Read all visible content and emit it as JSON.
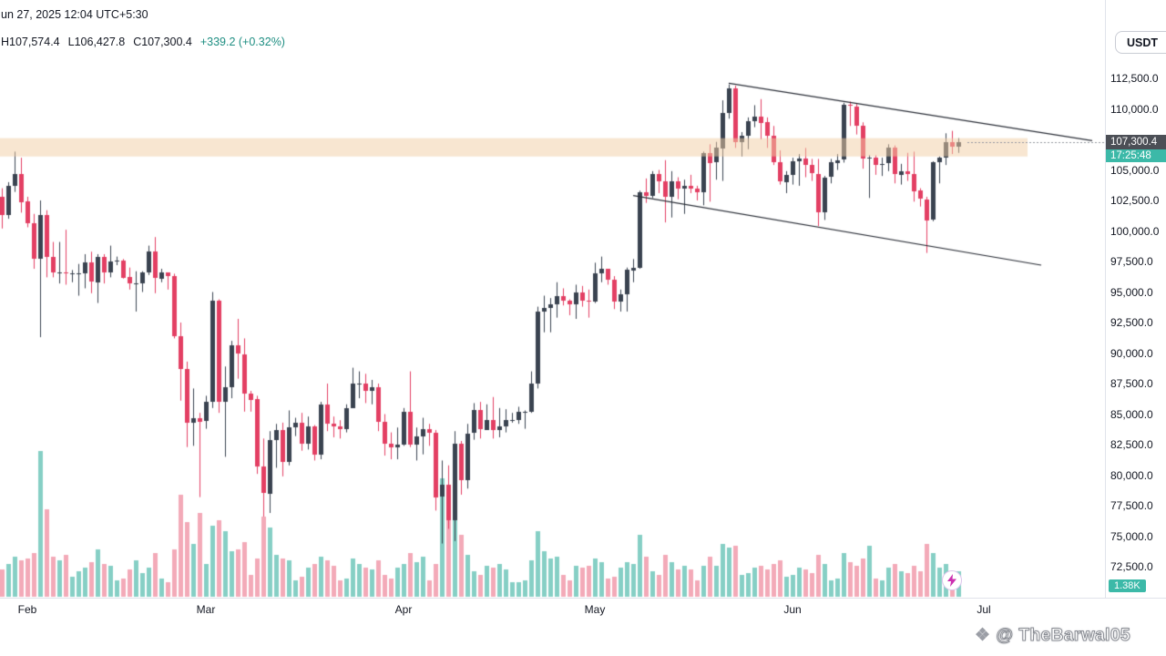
{
  "header": {
    "datetime": "un 27, 2025 12:04 UTC+5:30",
    "ohlc": {
      "h": "H107,574.4",
      "l": "L106,427.8",
      "c": "C107,300.4",
      "chg": "+339.2 (+0.32%)"
    },
    "currency_button": "USDT"
  },
  "price_label": {
    "price": "107,300.4",
    "countdown": "17:25:48"
  },
  "volume_label": "1.38K",
  "watermark": {
    "text": "@ TheBarwal05"
  },
  "colors": {
    "candle_up": "#3a4350",
    "candle_down": "#e33f63",
    "vol_up": "#86cfc5",
    "vol_down": "#f3aab8",
    "band": "#f2cda3",
    "trendline": "#2b2f38",
    "price_line": "#9598a1",
    "accent_teal": "#3cb9a8",
    "label_bg": "#4c4f56",
    "axis_border": "#e0e3eb",
    "text": "#131722"
  },
  "price_axis": {
    "ticks": [
      {
        "v": 112500,
        "label": "112,500.0"
      },
      {
        "v": 110000,
        "label": "110,000.0"
      },
      {
        "v": 107500,
        "label": "107,500.0"
      },
      {
        "v": 105000,
        "label": "105,000.0"
      },
      {
        "v": 102500,
        "label": "102,500.0"
      },
      {
        "v": 100000,
        "label": "100,000.0"
      },
      {
        "v": 97500,
        "label": "97,500.0"
      },
      {
        "v": 95000,
        "label": "95,000.0"
      },
      {
        "v": 92500,
        "label": "92,500.0"
      },
      {
        "v": 90000,
        "label": "90,000.0"
      },
      {
        "v": 87500,
        "label": "87,500.0"
      },
      {
        "v": 85000,
        "label": "85,000.0"
      },
      {
        "v": 82500,
        "label": "82,500.0"
      },
      {
        "v": 80000,
        "label": "80,000.0"
      },
      {
        "v": 77500,
        "label": "77,500.0"
      },
      {
        "v": 75000,
        "label": "75,000.0"
      },
      {
        "v": 72500,
        "label": "72,500.0"
      }
    ]
  },
  "time_axis": {
    "months": [
      {
        "label": "Feb",
        "i": 4
      },
      {
        "label": "Mar",
        "i": 32
      },
      {
        "label": "Apr",
        "i": 63
      },
      {
        "label": "May",
        "i": 93
      },
      {
        "label": "Jun",
        "i": 124
      },
      {
        "label": "Jul",
        "i": 154
      }
    ]
  },
  "chart_data": {
    "type": "candlestick",
    "title": "BTC/USDT daily candles, late Jan 28 through Jun 27 2025",
    "quote": "USDT",
    "price_unit": "kUSDT (multiply by 1000)",
    "ylim": [
      71500,
      114000
    ],
    "current_price": 107300.4,
    "band_zone": {
      "from": 106100,
      "to": 107600
    },
    "trendlines": [
      {
        "from_i": 114,
        "from_p": 112100,
        "to_i": 171,
        "to_p": 107400
      },
      {
        "from_i": 99,
        "from_p": 102900,
        "to_i": 163,
        "to_p": 97200
      }
    ],
    "candles": [
      [
        102.8,
        103.5,
        100.2,
        101.3
      ],
      [
        101.3,
        104.0,
        101.0,
        103.7
      ],
      [
        103.7,
        106.5,
        103.2,
        104.7
      ],
      [
        104.7,
        106.0,
        101.5,
        102.4
      ],
      [
        102.4,
        102.8,
        100.3,
        100.6
      ],
      [
        100.6,
        101.4,
        96.9,
        97.7
      ],
      [
        97.7,
        102.5,
        91.3,
        101.3
      ],
      [
        101.3,
        101.7,
        96.2,
        97.9
      ],
      [
        97.9,
        99.1,
        96.2,
        96.6
      ],
      [
        96.6,
        99.1,
        95.7,
        96.6
      ],
      [
        96.6,
        100.1,
        95.6,
        96.5
      ],
      [
        96.5,
        96.8,
        95.8,
        96.5
      ],
      [
        96.5,
        97.3,
        94.7,
        96.5
      ],
      [
        96.5,
        98.1,
        95.3,
        97.4
      ],
      [
        97.4,
        98.3,
        94.9,
        95.8
      ],
      [
        95.8,
        98.1,
        94.1,
        97.9
      ],
      [
        97.9,
        98.1,
        95.7,
        96.6
      ],
      [
        96.6,
        98.8,
        96.2,
        97.5
      ],
      [
        97.5,
        97.9,
        97.2,
        97.6
      ],
      [
        97.6,
        97.7,
        96.1,
        96.2
      ],
      [
        96.2,
        97.0,
        95.2,
        95.7
      ],
      [
        95.7,
        96.7,
        93.4,
        95.7
      ],
      [
        95.7,
        96.7,
        95.0,
        96.6
      ],
      [
        96.6,
        98.8,
        96.4,
        98.3
      ],
      [
        98.3,
        99.5,
        94.9,
        96.1
      ],
      [
        96.1,
        96.9,
        95.8,
        96.6
      ],
      [
        96.6,
        96.6,
        95.2,
        96.3
      ],
      [
        96.3,
        96.5,
        91.2,
        91.4
      ],
      [
        91.4,
        92.5,
        86.1,
        88.7
      ],
      [
        88.7,
        89.3,
        82.3,
        84.3
      ],
      [
        84.3,
        87.1,
        82.4,
        84.7
      ],
      [
        84.7,
        85.1,
        78.2,
        84.4
      ],
      [
        84.4,
        86.5,
        83.8,
        86.0
      ],
      [
        86.0,
        95.0,
        85.5,
        94.3
      ],
      [
        94.3,
        94.4,
        85.1,
        86.0
      ],
      [
        86.0,
        88.9,
        81.5,
        87.2
      ],
      [
        87.2,
        91.0,
        86.3,
        90.6
      ],
      [
        90.6,
        92.8,
        87.9,
        89.9
      ],
      [
        89.9,
        91.2,
        85.2,
        86.7
      ],
      [
        86.7,
        86.9,
        85.2,
        86.2
      ],
      [
        86.2,
        86.5,
        80.1,
        80.7
      ],
      [
        80.7,
        83.0,
        76.6,
        78.5
      ],
      [
        78.5,
        83.6,
        76.9,
        82.9
      ],
      [
        82.9,
        84.2,
        80.6,
        83.7
      ],
      [
        83.7,
        84.3,
        79.9,
        81.1
      ],
      [
        81.1,
        85.3,
        80.8,
        83.9
      ],
      [
        83.9,
        84.7,
        83.2,
        84.3
      ],
      [
        84.3,
        85.1,
        82.0,
        82.6
      ],
      [
        82.6,
        84.8,
        82.1,
        84.0
      ],
      [
        84.0,
        84.1,
        81.2,
        81.7
      ],
      [
        81.7,
        86.0,
        81.3,
        85.8
      ],
      [
        85.8,
        87.5,
        83.6,
        84.2
      ],
      [
        84.2,
        84.8,
        83.1,
        84.0
      ],
      [
        84.0,
        84.5,
        83.0,
        83.8
      ],
      [
        83.8,
        85.8,
        83.5,
        85.5
      ],
      [
        85.5,
        88.8,
        85.5,
        87.5
      ],
      [
        87.5,
        88.5,
        86.3,
        87.5
      ],
      [
        87.5,
        88.3,
        85.9,
        86.9
      ],
      [
        86.9,
        87.8,
        85.8,
        87.2
      ],
      [
        87.2,
        87.5,
        83.6,
        84.4
      ],
      [
        84.4,
        85.0,
        81.6,
        82.6
      ],
      [
        82.6,
        83.5,
        81.3,
        82.3
      ],
      [
        82.3,
        83.9,
        81.3,
        82.5
      ],
      [
        82.5,
        85.5,
        82.4,
        85.2
      ],
      [
        85.2,
        88.5,
        82.3,
        82.5
      ],
      [
        82.5,
        83.9,
        81.2,
        83.2
      ],
      [
        83.2,
        84.7,
        81.7,
        83.8
      ],
      [
        83.8,
        84.2,
        82.4,
        83.5
      ],
      [
        83.5,
        83.7,
        77.1,
        78.2
      ],
      [
        78.2,
        81.2,
        74.4,
        79.2
      ],
      [
        79.2,
        80.8,
        75.6,
        76.3
      ],
      [
        76.3,
        83.6,
        74.6,
        82.6
      ],
      [
        82.6,
        82.8,
        78.4,
        79.6
      ],
      [
        79.6,
        84.2,
        78.9,
        83.4
      ],
      [
        83.4,
        85.9,
        82.9,
        85.3
      ],
      [
        85.3,
        86.0,
        83.0,
        83.7
      ],
      [
        83.7,
        85.8,
        83.7,
        84.5
      ],
      [
        84.5,
        86.4,
        83.0,
        83.7
      ],
      [
        83.7,
        85.5,
        83.1,
        84.0
      ],
      [
        84.0,
        85.4,
        83.5,
        84.5
      ],
      [
        84.5,
        85.1,
        84.3,
        84.5
      ],
      [
        84.5,
        85.6,
        84.2,
        85.2
      ],
      [
        85.2,
        85.3,
        83.8,
        85.2
      ],
      [
        85.2,
        88.5,
        85.1,
        87.5
      ],
      [
        87.5,
        93.8,
        87.1,
        93.4
      ],
      [
        93.4,
        94.7,
        91.7,
        93.7
      ],
      [
        93.7,
        94.5,
        91.7,
        94.0
      ],
      [
        94.0,
        95.8,
        92.9,
        94.7
      ],
      [
        94.7,
        95.3,
        93.9,
        94.3
      ],
      [
        94.3,
        94.4,
        93.1,
        94.0
      ],
      [
        94.0,
        95.6,
        92.8,
        95.0
      ],
      [
        95.0,
        95.5,
        93.8,
        94.3
      ],
      [
        94.3,
        95.2,
        92.9,
        94.2
      ],
      [
        94.2,
        97.4,
        94.1,
        96.5
      ],
      [
        96.5,
        97.9,
        95.8,
        96.9
      ],
      [
        96.9,
        96.9,
        95.6,
        96.0
      ],
      [
        96.0,
        96.3,
        93.6,
        94.2
      ],
      [
        94.2,
        95.2,
        93.4,
        94.8
      ],
      [
        94.8,
        97.0,
        93.4,
        96.8
      ],
      [
        96.8,
        97.7,
        95.8,
        97.0
      ],
      [
        97.0,
        103.3,
        96.9,
        103.2
      ],
      [
        103.2,
        104.3,
        102.3,
        102.9
      ],
      [
        102.9,
        104.9,
        102.7,
        104.7
      ],
      [
        104.7,
        105.0,
        103.1,
        104.1
      ],
      [
        104.1,
        105.8,
        100.7,
        102.8
      ],
      [
        102.8,
        104.9,
        101.1,
        104.1
      ],
      [
        104.1,
        104.4,
        102.6,
        103.5
      ],
      [
        103.5,
        104.2,
        101.4,
        103.7
      ],
      [
        103.7,
        104.6,
        103.1,
        103.5
      ],
      [
        103.5,
        103.7,
        102.5,
        103.2
      ],
      [
        103.2,
        106.5,
        102.1,
        106.4
      ],
      [
        106.4,
        107.1,
        102.4,
        105.6
      ],
      [
        105.6,
        107.3,
        104.2,
        106.8
      ],
      [
        106.8,
        110.7,
        104.1,
        109.7
      ],
      [
        109.7,
        112.0,
        109.2,
        111.7
      ],
      [
        111.7,
        111.9,
        106.8,
        107.3
      ],
      [
        107.3,
        108.1,
        106.1,
        107.8
      ],
      [
        107.8,
        109.3,
        106.7,
        109.0
      ],
      [
        109.0,
        110.3,
        108.5,
        109.4
      ],
      [
        109.4,
        110.8,
        107.5,
        108.9
      ],
      [
        108.9,
        109.3,
        106.8,
        107.8
      ],
      [
        107.8,
        108.6,
        105.4,
        105.6
      ],
      [
        105.6,
        106.6,
        103.8,
        104.0
      ],
      [
        104.0,
        104.9,
        103.1,
        104.6
      ],
      [
        104.6,
        106.0,
        103.8,
        105.7
      ],
      [
        105.7,
        106.3,
        103.7,
        105.9
      ],
      [
        105.9,
        106.8,
        104.4,
        105.4
      ],
      [
        105.4,
        105.9,
        104.1,
        104.7
      ],
      [
        104.7,
        105.9,
        100.4,
        101.6
      ],
      [
        101.6,
        104.5,
        100.9,
        104.4
      ],
      [
        104.4,
        105.9,
        103.9,
        105.6
      ],
      [
        105.6,
        106.3,
        105.0,
        105.8
      ],
      [
        105.8,
        110.5,
        105.6,
        110.3
      ],
      [
        110.3,
        110.6,
        108.6,
        110.2
      ],
      [
        110.2,
        110.4,
        107.9,
        108.6
      ],
      [
        108.6,
        108.9,
        105.1,
        105.9
      ],
      [
        105.9,
        106.2,
        102.7,
        106.0
      ],
      [
        106.0,
        106.2,
        104.6,
        105.4
      ],
      [
        105.4,
        106.0,
        104.5,
        105.5
      ],
      [
        105.5,
        107.1,
        104.9,
        106.8
      ],
      [
        106.8,
        107.0,
        103.9,
        104.6
      ],
      [
        104.6,
        105.5,
        103.8,
        104.9
      ],
      [
        104.9,
        106.4,
        104.1,
        104.7
      ],
      [
        104.7,
        106.5,
        102.4,
        103.3
      ],
      [
        103.3,
        103.5,
        102.0,
        102.6
      ],
      [
        102.6,
        102.8,
        98.2,
        100.9
      ],
      [
        100.9,
        105.7,
        100.8,
        105.6
      ],
      [
        105.6,
        106.1,
        103.9,
        106.0
      ],
      [
        106.0,
        108.0,
        105.4,
        107.3
      ],
      [
        107.3,
        108.2,
        106.3,
        106.9
      ],
      [
        106.9,
        107.6,
        106.4,
        107.3
      ]
    ],
    "volumes_k": [
      1.5,
      1.8,
      2.2,
      2.0,
      2.1,
      2.4,
      8.0,
      4.8,
      2.2,
      2.0,
      2.3,
      1.1,
      1.4,
      1.6,
      1.9,
      2.6,
      1.8,
      1.7,
      0.9,
      1.0,
      1.5,
      2.0,
      1.3,
      1.6,
      2.4,
      1.0,
      0.8,
      2.6,
      5.6,
      4.1,
      2.9,
      4.6,
      1.8,
      3.9,
      4.2,
      3.6,
      2.5,
      2.6,
      3.0,
      1.2,
      2.1,
      4.4,
      3.8,
      2.3,
      2.1,
      2.0,
      0.9,
      1.1,
      1.6,
      1.8,
      2.2,
      2.0,
      1.7,
      0.9,
      1.0,
      2.1,
      1.8,
      1.6,
      1.5,
      2.0,
      1.2,
      1.0,
      1.6,
      1.8,
      2.4,
      1.9,
      2.2,
      0.9,
      1.8,
      6.5,
      4.8,
      7.1,
      3.4,
      2.3,
      1.4,
      1.2,
      1.7,
      1.6,
      1.8,
      1.5,
      0.8,
      0.8,
      0.9,
      2.0,
      3.6,
      2.5,
      2.1,
      2.2,
      1.2,
      0.9,
      1.7,
      1.6,
      1.7,
      2.1,
      1.9,
      1.0,
      1.1,
      1.6,
      1.9,
      1.8,
      3.4,
      2.2,
      1.4,
      1.2,
      2.3,
      1.9,
      1.5,
      1.7,
      1.5,
      0.9,
      1.7,
      2.2,
      1.7,
      2.9,
      2.7,
      2.8,
      1.2,
      1.3,
      1.6,
      1.7,
      1.5,
      1.8,
      2.0,
      1.1,
      1.2,
      1.6,
      1.5,
      1.3,
      2.3,
      1.8,
      0.9,
      1.0,
      2.4,
      1.9,
      1.7,
      2.1,
      2.8,
      1.0,
      0.9,
      1.6,
      1.8,
      1.4,
      1.3,
      1.7,
      1.4,
      2.9,
      2.4,
      1.6,
      1.8,
      1.4,
      1.38
    ]
  }
}
